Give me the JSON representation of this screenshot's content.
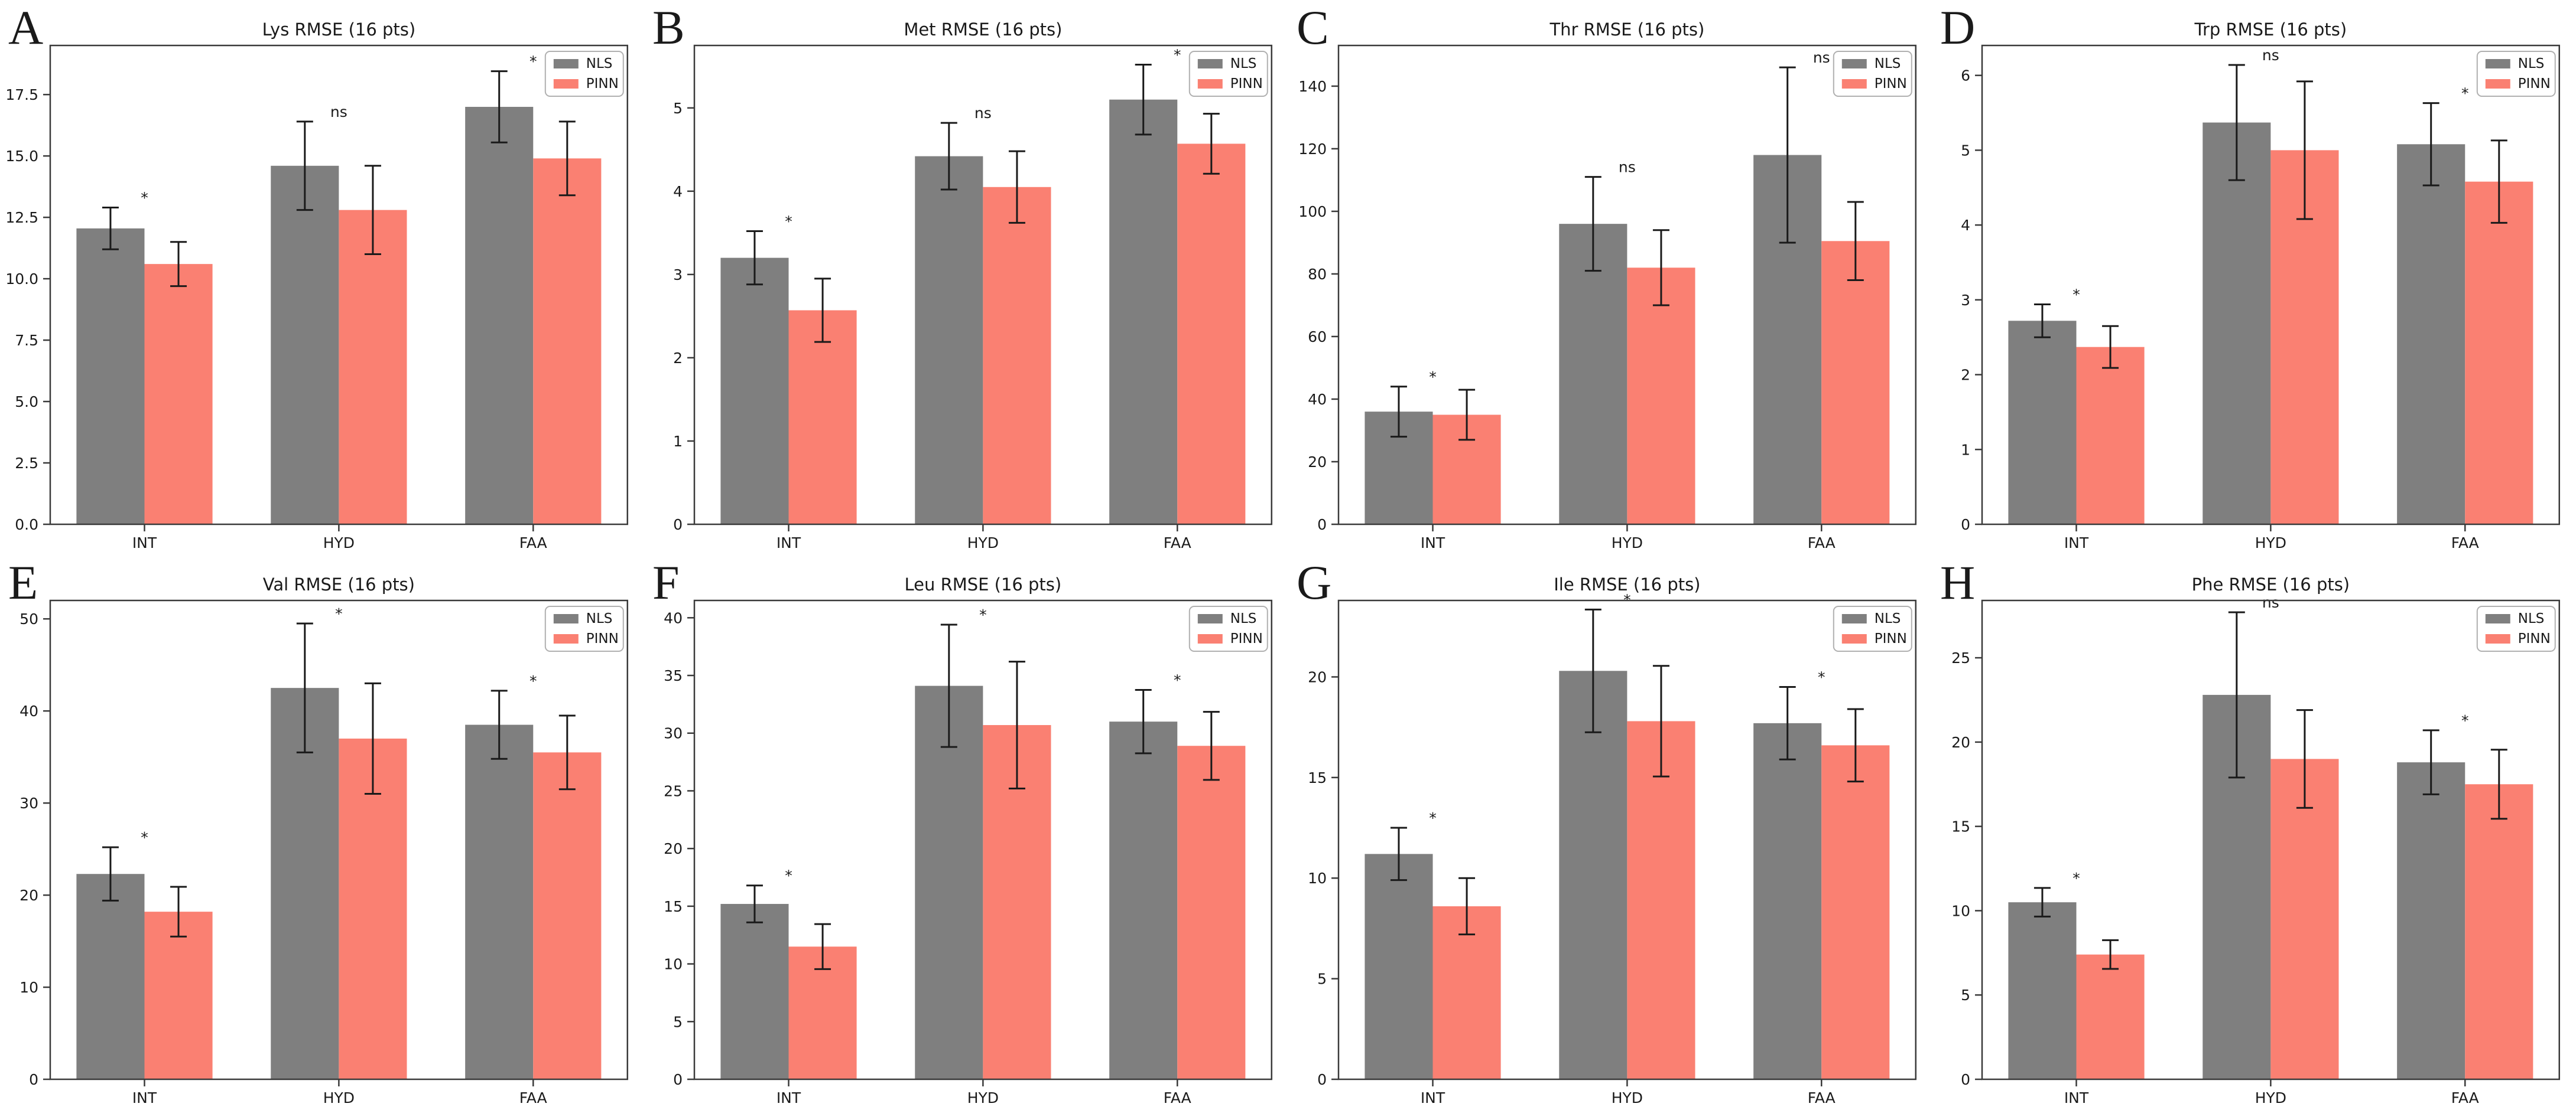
{
  "figure": {
    "legend_labels": [
      "NLS",
      "PINN"
    ],
    "colors": {
      "nls": "#7f7f7f",
      "pinn": "#fa8072",
      "error": "#1a1a1a",
      "spine": "#3a3a3a",
      "text": "#1a1a1a",
      "legend_border": "#b0b0b0",
      "background": "#ffffff"
    }
  },
  "chart_data": [
    {
      "type": "bar",
      "panel_label": "A",
      "title": "Lys RMSE (16 pts)",
      "categories": [
        "INT",
        "HYD",
        "FAA"
      ],
      "series": [
        {
          "name": "NLS",
          "values": [
            12.05,
            14.6,
            17.0
          ],
          "errors": [
            0.85,
            1.8,
            1.45
          ]
        },
        {
          "name": "PINN",
          "values": [
            10.6,
            12.8,
            14.9
          ],
          "errors": [
            0.9,
            1.8,
            1.5
          ]
        }
      ],
      "significance": [
        "*",
        "ns",
        "*"
      ],
      "ylim": [
        0,
        19.5
      ],
      "ytick_vals": [
        0,
        2.5,
        5,
        7.5,
        10,
        12.5,
        15,
        17.5
      ],
      "ytick_labels": [
        "0.0",
        "2.5",
        "5.0",
        "7.5",
        "10.0",
        "12.5",
        "15.0",
        "17.5"
      ],
      "legend_position": "upper right",
      "grid": false,
      "xlabel": "",
      "ylabel": ""
    },
    {
      "type": "bar",
      "panel_label": "B",
      "title": "Met RMSE (16 pts)",
      "categories": [
        "INT",
        "HYD",
        "FAA"
      ],
      "series": [
        {
          "name": "NLS",
          "values": [
            3.2,
            4.42,
            5.1
          ],
          "errors": [
            0.32,
            0.4,
            0.42
          ]
        },
        {
          "name": "PINN",
          "values": [
            2.57,
            4.05,
            4.57
          ],
          "errors": [
            0.38,
            0.43,
            0.36
          ]
        }
      ],
      "significance": [
        "*",
        "ns",
        "*"
      ],
      "ylim": [
        0,
        5.75
      ],
      "ytick_vals": [
        0,
        1,
        2,
        3,
        4,
        5
      ],
      "ytick_labels": [
        "0",
        "1",
        "2",
        "3",
        "4",
        "5"
      ],
      "legend_position": "upper right",
      "grid": false,
      "xlabel": "",
      "ylabel": ""
    },
    {
      "type": "bar",
      "panel_label": "C",
      "title": "Thr RMSE (16 pts)",
      "categories": [
        "INT",
        "HYD",
        "FAA"
      ],
      "series": [
        {
          "name": "NLS",
          "values": [
            36,
            96,
            118
          ],
          "errors": [
            8,
            15,
            28
          ]
        },
        {
          "name": "PINN",
          "values": [
            35,
            82,
            90.5
          ],
          "errors": [
            8,
            12,
            12.5
          ]
        }
      ],
      "significance": [
        "*",
        "ns",
        "ns"
      ],
      "ylim": [
        0,
        153
      ],
      "ytick_vals": [
        0,
        20,
        40,
        60,
        80,
        100,
        120,
        140
      ],
      "ytick_labels": [
        "0",
        "20",
        "40",
        "60",
        "80",
        "100",
        "120",
        "140"
      ],
      "legend_position": "upper right",
      "grid": false,
      "xlabel": "",
      "ylabel": ""
    },
    {
      "type": "bar",
      "panel_label": "D",
      "title": "Trp RMSE (16 pts)",
      "categories": [
        "INT",
        "HYD",
        "FAA"
      ],
      "series": [
        {
          "name": "NLS",
          "values": [
            2.72,
            5.37,
            5.08
          ],
          "errors": [
            0.22,
            0.77,
            0.55
          ]
        },
        {
          "name": "PINN",
          "values": [
            2.37,
            5.0,
            4.58
          ],
          "errors": [
            0.28,
            0.92,
            0.55
          ]
        }
      ],
      "significance": [
        "*",
        "ns",
        "*"
      ],
      "ylim": [
        0,
        6.4
      ],
      "ytick_vals": [
        0,
        1,
        2,
        3,
        4,
        5,
        6
      ],
      "ytick_labels": [
        "0",
        "1",
        "2",
        "3",
        "4",
        "5",
        "6"
      ],
      "legend_position": "upper right",
      "grid": false,
      "xlabel": "",
      "ylabel": ""
    },
    {
      "type": "bar",
      "panel_label": "E",
      "title": "Val RMSE (16 pts)",
      "categories": [
        "INT",
        "HYD",
        "FAA"
      ],
      "series": [
        {
          "name": "NLS",
          "values": [
            22.3,
            42.5,
            38.5
          ],
          "errors": [
            2.9,
            7.0,
            3.7
          ]
        },
        {
          "name": "PINN",
          "values": [
            18.2,
            37.0,
            35.5
          ],
          "errors": [
            2.7,
            6.0,
            4.0
          ]
        }
      ],
      "significance": [
        "*",
        "*",
        "*"
      ],
      "ylim": [
        0,
        52
      ],
      "ytick_vals": [
        0,
        10,
        20,
        30,
        40,
        50
      ],
      "ytick_labels": [
        "0",
        "10",
        "20",
        "30",
        "40",
        "50"
      ],
      "legend_position": "upper right",
      "grid": false,
      "xlabel": "",
      "ylabel": ""
    },
    {
      "type": "bar",
      "panel_label": "F",
      "title": "Leu RMSE (16 pts)",
      "categories": [
        "INT",
        "HYD",
        "FAA"
      ],
      "series": [
        {
          "name": "NLS",
          "values": [
            15.2,
            34.1,
            31.0
          ],
          "errors": [
            1.6,
            5.3,
            2.75
          ]
        },
        {
          "name": "PINN",
          "values": [
            11.5,
            30.7,
            28.9
          ],
          "errors": [
            1.95,
            5.5,
            2.95
          ]
        }
      ],
      "significance": [
        "*",
        "*",
        "*"
      ],
      "ylim": [
        0,
        41.5
      ],
      "ytick_vals": [
        0,
        5,
        10,
        15,
        20,
        25,
        30,
        35,
        40
      ],
      "ytick_labels": [
        "0",
        "5",
        "10",
        "15",
        "20",
        "25",
        "30",
        "35",
        "40"
      ],
      "legend_position": "upper right",
      "grid": false,
      "xlabel": "",
      "ylabel": ""
    },
    {
      "type": "bar",
      "panel_label": "G",
      "title": "Ile RMSE (16 pts)",
      "categories": [
        "INT",
        "HYD",
        "FAA"
      ],
      "series": [
        {
          "name": "NLS",
          "values": [
            11.2,
            20.3,
            17.7
          ],
          "errors": [
            1.3,
            3.05,
            1.8
          ]
        },
        {
          "name": "PINN",
          "values": [
            8.6,
            17.8,
            16.6
          ],
          "errors": [
            1.4,
            2.75,
            1.8
          ]
        }
      ],
      "significance": [
        "*",
        "*",
        "*"
      ],
      "ylim": [
        0,
        23.8
      ],
      "ytick_vals": [
        0,
        5,
        10,
        15,
        20
      ],
      "ytick_labels": [
        "0",
        "5",
        "10",
        "15",
        "20"
      ],
      "legend_position": "upper right",
      "grid": false,
      "xlabel": "",
      "ylabel": ""
    },
    {
      "type": "bar",
      "panel_label": "H",
      "title": "Phe RMSE (16 pts)",
      "categories": [
        "INT",
        "HYD",
        "FAA"
      ],
      "series": [
        {
          "name": "NLS",
          "values": [
            10.5,
            22.8,
            18.8
          ],
          "errors": [
            0.85,
            4.9,
            1.9
          ]
        },
        {
          "name": "PINN",
          "values": [
            7.4,
            19.0,
            17.5
          ],
          "errors": [
            0.85,
            2.9,
            2.05
          ]
        }
      ],
      "significance": [
        "*",
        "ns",
        "*"
      ],
      "ylim": [
        0,
        28.4
      ],
      "ytick_vals": [
        0,
        5,
        10,
        15,
        20,
        25
      ],
      "ytick_labels": [
        "0",
        "5",
        "10",
        "15",
        "20",
        "25"
      ],
      "legend_position": "upper right",
      "grid": false,
      "xlabel": "",
      "ylabel": ""
    }
  ]
}
